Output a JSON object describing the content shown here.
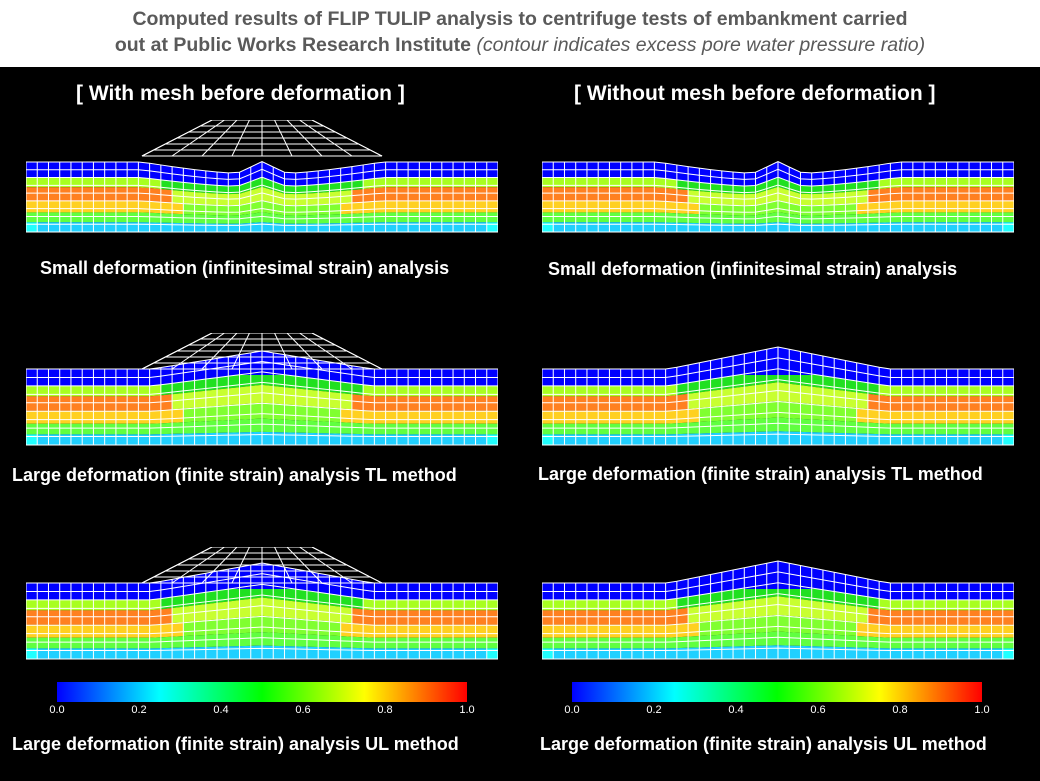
{
  "title": {
    "line1": "Computed results of FLIP  TULIP analysis to centrifuge tests of embankment carried",
    "line2_main": "out at Public Works Research Institute ",
    "line2_italic": "(contour indicates excess pore water pressure ratio)"
  },
  "headers": {
    "left": "[ With mesh before deformation ]",
    "right": "[ Without mesh before deformation ]"
  },
  "captions": {
    "left": [
      "Small  deformation  (infinitesimal  strain)  analysis",
      "Large  deformation  (finite  strain)  analysis  TL  method",
      "Large  deformation  (finite  strain)  analysis  UL  method"
    ],
    "right": [
      "Small  deformation  (infinitesimal  strain)  analysis",
      "Large  deformation  (finite  strain)  analysis  TL  method",
      "Large  deformation  (finite  strain)  analysis  UL  method"
    ]
  },
  "colorbar": {
    "ticks": [
      "0.0",
      "0.2",
      "0.4",
      "0.6",
      "0.8",
      "1.0"
    ],
    "colors": [
      "#0000ff",
      "#00ffff",
      "#00ff00",
      "#ffff00",
      "#ff0000"
    ]
  }
}
